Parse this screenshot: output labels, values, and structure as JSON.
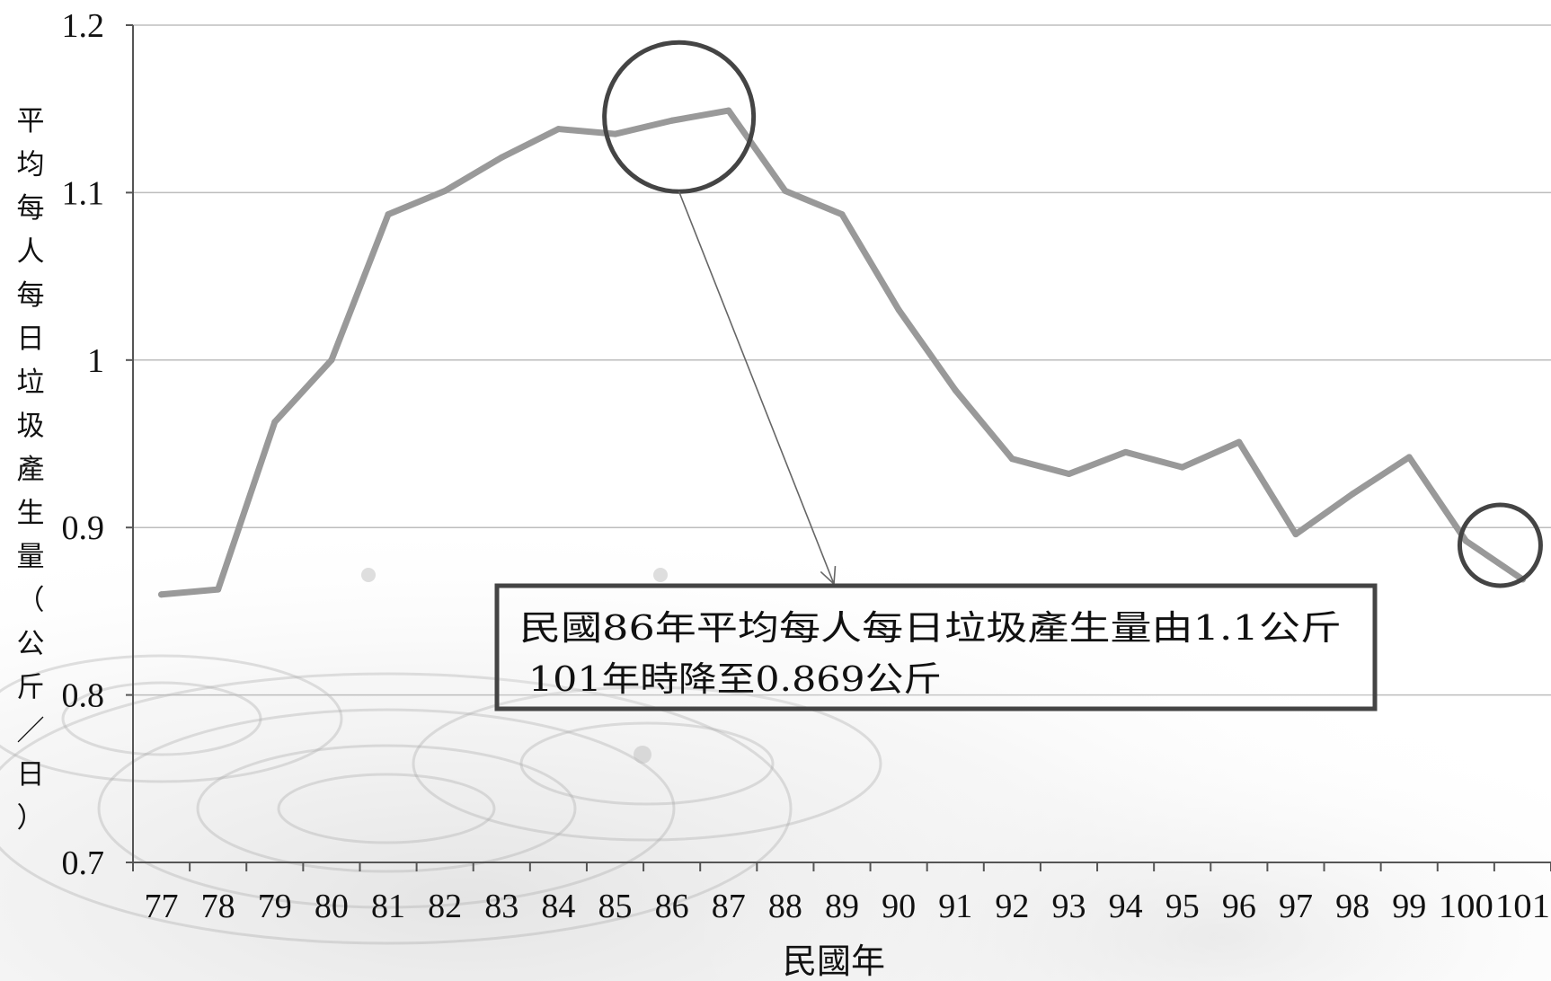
{
  "chart_data": {
    "type": "line",
    "title": "",
    "xlabel": "民國年",
    "ylabel": "平均每人每日垃圾產生量（公斤／日）",
    "categories": [
      "77",
      "78",
      "79",
      "80",
      "81",
      "82",
      "83",
      "84",
      "85",
      "86",
      "87",
      "88",
      "89",
      "90",
      "91",
      "92",
      "93",
      "94",
      "95",
      "96",
      "97",
      "98",
      "99",
      "100",
      "101"
    ],
    "series": [
      {
        "values": [
          0.86,
          0.863,
          0.963,
          1.0,
          1.087,
          1.101,
          1.121,
          1.138,
          1.135,
          1.143,
          1.149,
          1.101,
          1.087,
          1.03,
          0.982,
          0.941,
          0.932,
          0.945,
          0.936,
          0.951,
          0.896,
          0.92,
          0.942,
          0.892,
          0.869
        ]
      }
    ],
    "ylim": [
      0.7,
      1.2
    ],
    "yticks": [
      "0.7",
      "0.8",
      "0.9",
      "1",
      "1.1",
      "1.2"
    ],
    "grid": true,
    "legend": "none",
    "annotations": [
      {
        "text_line1": "民國86年平均每人每日垃圾產生量由1.1公斤",
        "text_line2": "101年時降至0.869公斤",
        "highlight_categories": [
          "86",
          "101"
        ]
      }
    ],
    "colors": {
      "line": "#999999",
      "grid": "#bdbdbd",
      "axis": "#555555",
      "circle": "#444444",
      "box": "#444444",
      "arrow": "#666666"
    }
  }
}
